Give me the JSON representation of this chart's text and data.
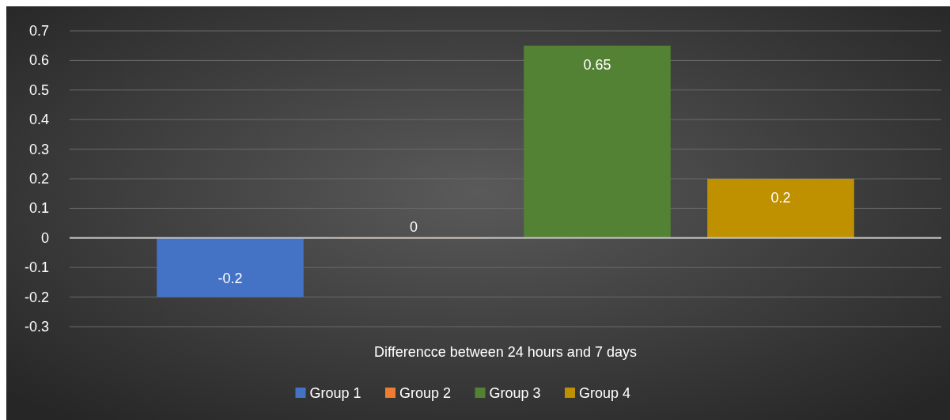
{
  "chart_data": {
    "type": "bar",
    "categories": [
      "Differencce between 24 hours and 7 days"
    ],
    "series": [
      {
        "name": "Group 1",
        "color": "#4472c4",
        "values": [
          -0.2
        ]
      },
      {
        "name": "Group 2",
        "color": "#ed7d31",
        "values": [
          0
        ]
      },
      {
        "name": "Group 3",
        "color": "#548235",
        "values": [
          0.65
        ]
      },
      {
        "name": "Group 4",
        "color": "#bf9000",
        "values": [
          0.2
        ]
      }
    ],
    "ylim": [
      -0.3,
      0.7
    ],
    "yticks": [
      -0.3,
      -0.2,
      -0.1,
      0,
      0.1,
      0.2,
      0.3,
      0.4,
      0.5,
      0.6,
      0.7
    ],
    "grid": "y",
    "legend": "bottom",
    "data_labels": true
  }
}
